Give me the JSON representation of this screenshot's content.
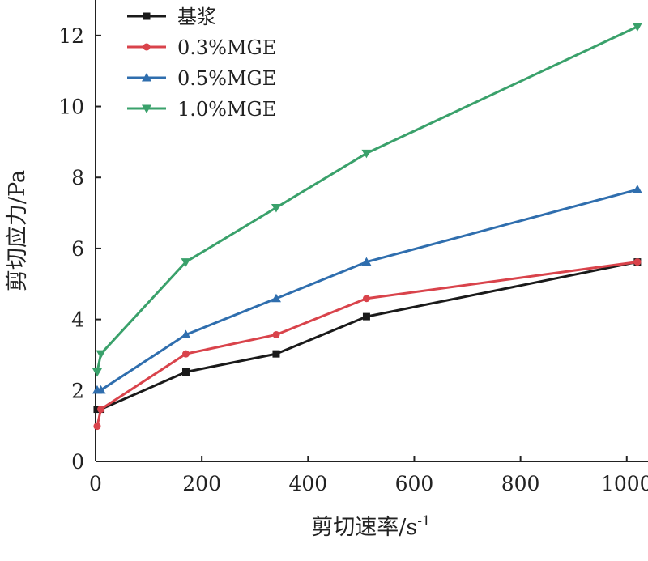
{
  "chart_data": {
    "type": "line",
    "xlabel": "剪切速率/s",
    "xlabel_sup": "-1",
    "ylabel": "剪切应力/Pa",
    "xlim": [
      0,
      1040
    ],
    "ylim": [
      0,
      13
    ],
    "x_ticks": [
      0,
      200,
      400,
      600,
      800,
      1000
    ],
    "y_ticks": [
      0,
      2,
      4,
      6,
      8,
      10,
      12
    ],
    "grid": false,
    "legend_position": "top-left",
    "series": [
      {
        "name": "基浆",
        "color": "#1a1a1a",
        "marker": "square",
        "points": [
          [
            3,
            1.47
          ],
          [
            10,
            1.47
          ],
          [
            170,
            2.52
          ],
          [
            340,
            3.03
          ],
          [
            510,
            4.08
          ],
          [
            1020,
            5.62
          ]
        ]
      },
      {
        "name": "0.3%MGE",
        "color": "#d9434b",
        "marker": "circle",
        "points": [
          [
            3,
            0.99
          ],
          [
            10,
            1.47
          ],
          [
            170,
            3.03
          ],
          [
            340,
            3.57
          ],
          [
            510,
            4.59
          ],
          [
            1020,
            5.62
          ]
        ]
      },
      {
        "name": "0.5%MGE",
        "color": "#2f6eae",
        "marker": "triangle-up",
        "points": [
          [
            3,
            2.01
          ],
          [
            10,
            2.01
          ],
          [
            170,
            3.57
          ],
          [
            340,
            4.59
          ],
          [
            510,
            5.62
          ],
          [
            1020,
            7.66
          ]
        ]
      },
      {
        "name": "1.0%MGE",
        "color": "#3aa16b",
        "marker": "triangle-down",
        "points": [
          [
            3,
            2.52
          ],
          [
            10,
            3.03
          ],
          [
            170,
            5.62
          ],
          [
            340,
            7.15
          ],
          [
            510,
            8.68
          ],
          [
            1020,
            12.25
          ]
        ]
      }
    ]
  }
}
